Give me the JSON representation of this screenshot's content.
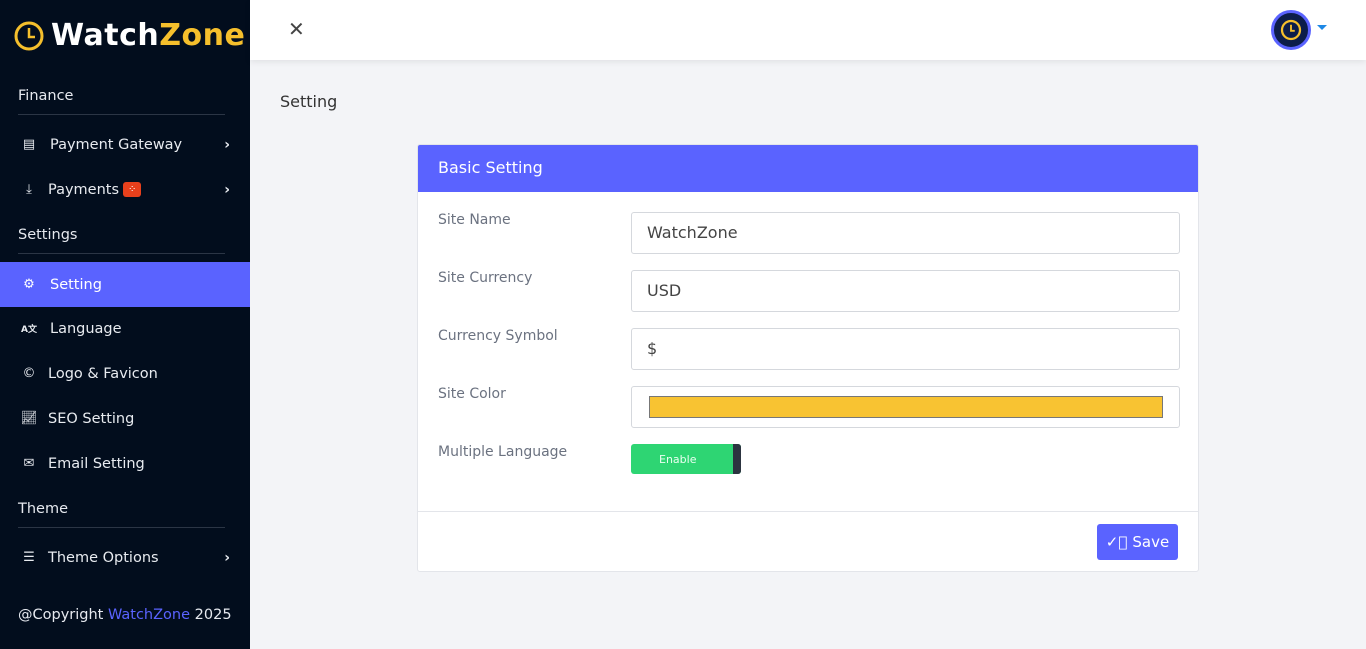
{
  "brand": {
    "part1": "Watch",
    "part2": "Zone"
  },
  "sidebar": {
    "sections": [
      "Finance",
      "Settings",
      "Theme"
    ],
    "items": [
      {
        "label": "Payment Gateway",
        "icon": "money-check-icon"
      },
      {
        "label": "Payments",
        "icon": "download-icon",
        "badge": "spinner"
      },
      {
        "label": "Setting",
        "icon": "cogs-icon",
        "active": true
      },
      {
        "label": "Language",
        "icon": "language-icon"
      },
      {
        "label": "Logo & Favicon",
        "icon": "copyright-icon"
      },
      {
        "label": "SEO Setting",
        "icon": "chart-line-icon"
      },
      {
        "label": "Email Setting",
        "icon": "envelope-open-icon"
      },
      {
        "label": "Theme Options",
        "icon": "sliders-icon"
      }
    ],
    "copyright": {
      "prefix": "@Copyright ",
      "link": "WatchZone",
      "year": " 2025"
    }
  },
  "page": {
    "title": "Setting"
  },
  "card": {
    "title": "Basic Setting",
    "fields": {
      "site_name": {
        "label": "Site Name",
        "value": "WatchZone"
      },
      "site_currency": {
        "label": "Site Currency",
        "value": "USD"
      },
      "currency_symbol": {
        "label": "Currency Symbol",
        "value": "$"
      },
      "site_color": {
        "label": "Site Color",
        "value": "#f8c332"
      },
      "multiple_language": {
        "label": "Multiple Language",
        "value": "Enable"
      }
    },
    "save_label": "Save"
  },
  "colors": {
    "accent": "#5a63ff",
    "sidebar": "#020d1d",
    "brand_yellow": "#f5bf2c",
    "toggle_on": "#2ed573"
  }
}
